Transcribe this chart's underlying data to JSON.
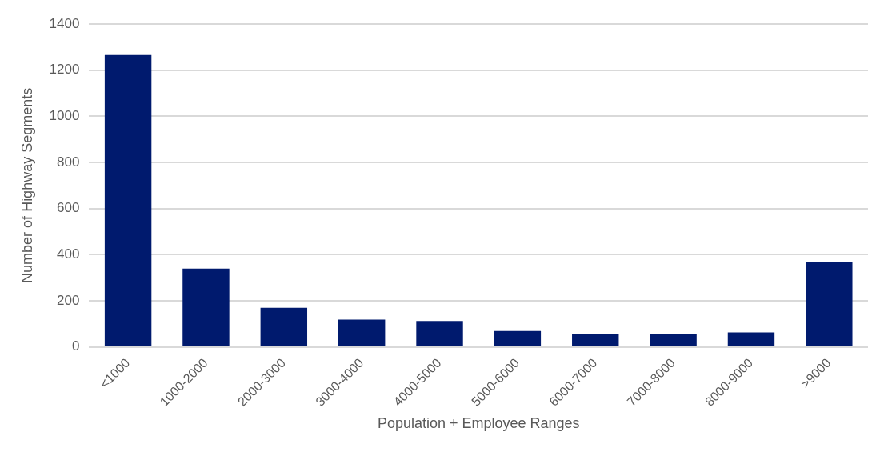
{
  "chart_data": {
    "type": "bar",
    "categories": [
      "<1000",
      "1000-2000",
      "2000-3000",
      "3000-4000",
      "4000-5000",
      "5000-6000",
      "6000-7000",
      "7000-8000",
      "8000-9000",
      ">9000"
    ],
    "values": [
      1266,
      340,
      170,
      119,
      113,
      69,
      56,
      56,
      63,
      370
    ],
    "color": "#001a6e",
    "xlabel": "Population + Employee Ranges",
    "ylabel": "Number of Highway Segments",
    "ylim": [
      0,
      1400
    ],
    "yticks": [
      0,
      200,
      400,
      600,
      800,
      1000,
      1200,
      1400
    ],
    "grid": "y"
  }
}
